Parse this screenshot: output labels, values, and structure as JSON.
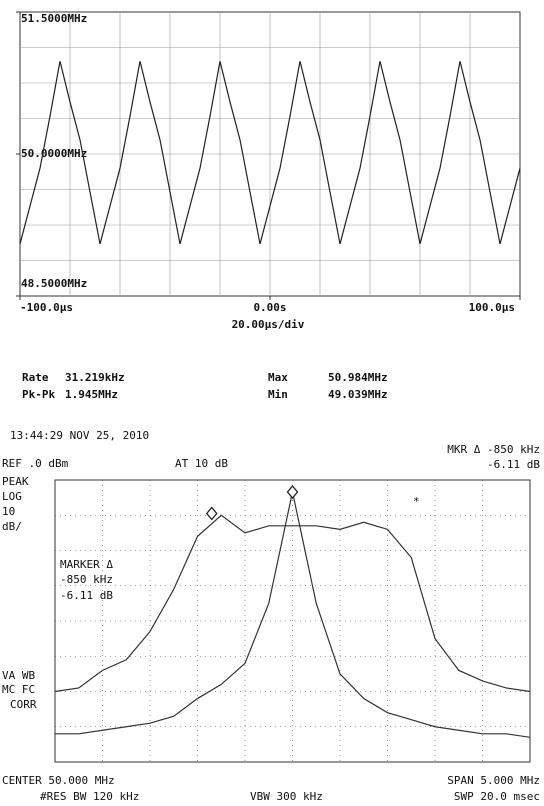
{
  "chart_data": [
    {
      "type": "line",
      "x": [
        -100,
        -96,
        -92,
        -88,
        -84,
        -80,
        -76,
        -72,
        -68,
        -64,
        -60,
        -56,
        -52,
        -48,
        -44,
        -40,
        -36,
        -32,
        -28,
        -24,
        -20,
        -16,
        -12,
        -8,
        -4,
        0,
        4,
        8,
        12,
        16,
        20,
        24,
        28,
        32,
        36,
        40,
        44,
        48,
        52,
        56,
        60,
        64,
        68,
        72,
        76,
        80,
        84,
        88,
        92,
        96,
        100
      ],
      "series": [
        {
          "color": "#222222",
          "values": [
            49.05,
            49.45,
            49.85,
            50.4,
            50.98,
            50.55,
            50.15,
            49.6,
            49.05,
            49.45,
            49.85,
            50.4,
            50.98,
            50.55,
            50.15,
            49.6,
            49.05,
            49.45,
            49.85,
            50.4,
            50.98,
            50.55,
            50.15,
            49.6,
            49.05,
            49.45,
            49.85,
            50.4,
            50.98,
            50.55,
            50.15,
            49.6,
            49.05,
            49.45,
            49.85,
            50.4,
            50.98,
            50.55,
            50.15,
            49.6,
            49.05,
            49.45,
            49.85,
            50.4,
            50.98,
            50.55,
            50.15,
            49.6,
            49.05,
            49.45,
            49.85
          ]
        }
      ],
      "xlim": [
        -100,
        100
      ],
      "xticks": [
        {
          "value": -100,
          "label": "-100.0µs"
        },
        {
          "value": 0,
          "label": "0.00s"
        },
        {
          "value": 100,
          "label": "100.0µs"
        }
      ],
      "ylim": [
        48.5,
        51.5
      ],
      "yticks": [
        {
          "value": 48.5,
          "label": "48.5000MHz"
        },
        {
          "value": 50,
          "label": "50.0000MHz"
        },
        {
          "value": 51.5,
          "label": "51.5000MHz"
        }
      ],
      "grid": true,
      "x_label": "20.00µs/div",
      "readout": {
        "rate_label": "Rate",
        "rate": "31.219kHz",
        "pkpk_label": "Pk-Pk",
        "pkpk": "1.945MHz",
        "max_label": "Max",
        "max": "50.984MHz",
        "min_label": "Min",
        "min": "49.039MHz"
      }
    },
    {
      "type": "line",
      "x": [
        47.5,
        47.75,
        48,
        48.25,
        48.5,
        48.75,
        49,
        49.25,
        49.5,
        49.75,
        50,
        50.25,
        50.5,
        50.75,
        51,
        51.25,
        51.5,
        51.75,
        52,
        52.25,
        52.5
      ],
      "series": [
        {
          "color": "#333333",
          "values": [
            -60,
            -59,
            -54,
            -51,
            -43,
            -31,
            -16,
            -10,
            -15,
            -13,
            -13,
            -13,
            -14,
            -12,
            -14,
            -22,
            -45,
            -54,
            -57,
            -59,
            -60
          ]
        },
        {
          "color": "#333333",
          "values": [
            -72,
            -72,
            -71,
            -70,
            -69,
            -67,
            -62,
            -58,
            -52,
            -35,
            -3.4,
            -35,
            -55,
            -62,
            -66,
            -68,
            -70,
            -71,
            -72,
            -72,
            -73
          ]
        }
      ],
      "xlim": [
        47.5,
        52.5
      ],
      "ylim": [
        -80,
        0
      ],
      "grid": true,
      "markers": [
        {
          "x": 49.15,
          "y": -9.5
        },
        {
          "x": 50,
          "y": -3.4
        }
      ],
      "annotations": {
        "timestamp": "13:44:29 NOV 25, 2010",
        "ref": "REF .0 dBm",
        "atten": "AT 10 dB",
        "mkr": "MKR Δ -850 kHz",
        "mkr_value": "-6.11 dB",
        "mode": [
          "PEAK",
          "LOG",
          "10",
          "dB/"
        ],
        "marker_box": [
          "MARKER Δ",
          "-850 kHz",
          "-6.11 dB"
        ],
        "flags": [
          "VA WB",
          "MC FC",
          "CORR"
        ],
        "star": "*",
        "center": "CENTER 50.000 MHz",
        "res_bw": "#RES BW 120 kHz",
        "vbw": "VBW 300 kHz",
        "span": "SPAN 5.000 MHz",
        "sweep": "SWP 20.0 msec"
      }
    }
  ]
}
